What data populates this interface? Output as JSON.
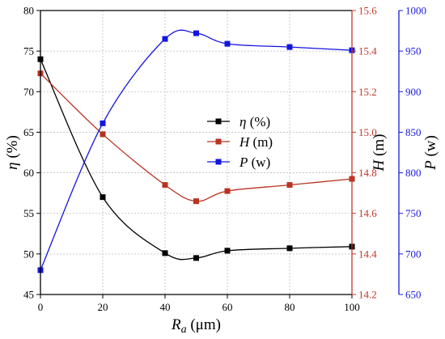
{
  "chart_data": {
    "type": "line",
    "title": "",
    "x": [
      0,
      20,
      40,
      50,
      60,
      80,
      100
    ],
    "xlim": [
      0,
      100
    ],
    "xticks": [
      0,
      20,
      40,
      60,
      80,
      100
    ],
    "xlabel": {
      "sym": "R",
      "sub": "a",
      "unit": " (μm)"
    },
    "grid": true,
    "legend_position": "center",
    "axes": [
      {
        "id": "eta",
        "side": "left",
        "sym": "η",
        "unit": " (%)",
        "ylim": [
          45,
          80
        ],
        "ticks": [
          45,
          50,
          55,
          60,
          65,
          70,
          75,
          80
        ],
        "decimals": 0,
        "color": "#000000"
      },
      {
        "id": "H",
        "side": "right",
        "sym": "H",
        "unit": " (m)",
        "ylim": [
          14.2,
          15.6
        ],
        "ticks": [
          14.2,
          14.4,
          14.6,
          14.8,
          15.0,
          15.2,
          15.4,
          15.6
        ],
        "decimals": 1,
        "color": "#c0392b"
      },
      {
        "id": "P",
        "side": "right-outer",
        "sym": "P",
        "unit": " (w)",
        "ylim": [
          650,
          1000
        ],
        "ticks": [
          650,
          700,
          750,
          800,
          850,
          900,
          950,
          1000
        ],
        "decimals": 0,
        "color": "#1a1adb"
      }
    ],
    "series": [
      {
        "sym": "η",
        "unit": "  (%)",
        "axis": "eta",
        "color": "#000000",
        "values": [
          74.0,
          57.0,
          50.1,
          49.5,
          50.4,
          50.7,
          50.9
        ]
      },
      {
        "sym": "H",
        "unit": " (m)",
        "axis": "H",
        "color": "#b83220",
        "values": [
          15.29,
          14.99,
          14.74,
          14.66,
          14.71,
          14.74,
          14.77
        ]
      },
      {
        "sym": "P",
        "unit": " (w)",
        "axis": "P",
        "color": "#1414e0",
        "values": [
          680,
          861,
          965,
          972,
          959,
          955,
          951
        ]
      }
    ]
  }
}
